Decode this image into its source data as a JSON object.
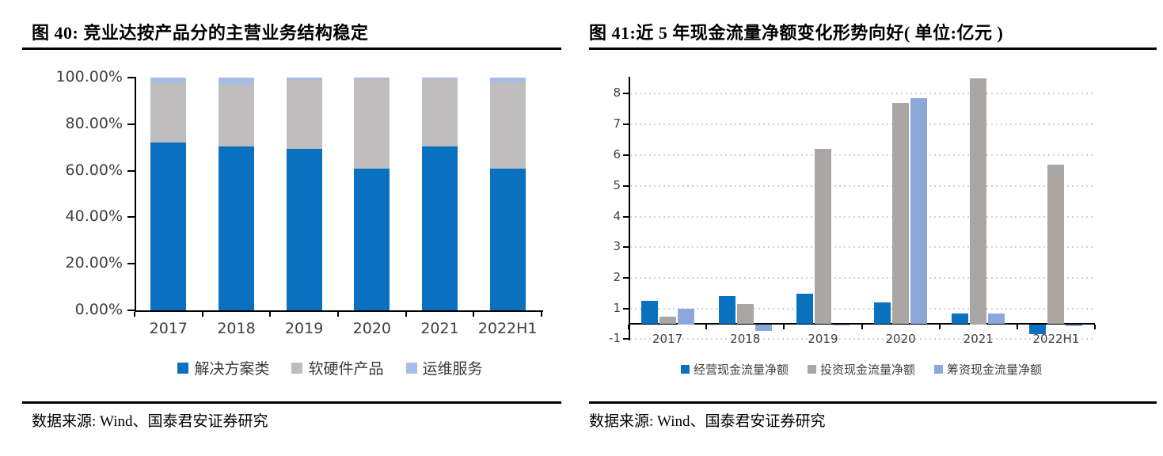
{
  "panels": {
    "left": {
      "title": "图 40: 竞业达按产品分的主营业务结构稳定",
      "source": "数据来源: Wind、国泰君安证券研究"
    },
    "right": {
      "title": "图 41:近 5 年现金流量净额变化形势向好( 单位:亿元 )",
      "source": "数据来源: Wind、国泰君安证券研究"
    }
  },
  "colors": {
    "bar_blue": "#0a70c0",
    "bar_gray_left": "#bfbdbd",
    "bar_gray_right": "#a9a6a4",
    "bar_lightblue_left": "#a9bce4",
    "bar_lightblue_right": "#8ea7db",
    "axis": "#000000",
    "tick_text": "#404040",
    "gridline": "#d2d2d2",
    "title_text": "#000000"
  },
  "chart_data": [
    {
      "type": "bar",
      "variant": "stacked-100-percent",
      "title": "竞业达按产品分的主营业务结构稳定",
      "categories": [
        "2017",
        "2018",
        "2019",
        "2020",
        "2021",
        "2022H1"
      ],
      "series": [
        {
          "name": "解决方案类",
          "color": "#0a70c0",
          "values": [
            72,
            70.5,
            69.5,
            61,
            70.5,
            61
          ]
        },
        {
          "name": "软硬件产品",
          "color": "#bfbdbd",
          "values": [
            25.5,
            26.5,
            29.5,
            38.2,
            28.9,
            37
          ]
        },
        {
          "name": "运维服务",
          "color": "#a9bce4",
          "values": [
            2.5,
            3,
            1,
            0.8,
            0.6,
            2
          ]
        }
      ],
      "yticks": [
        "0.00%",
        "20.00%",
        "40.00%",
        "60.00%",
        "80.00%",
        "100.00%"
      ],
      "ylim": [
        0,
        100
      ],
      "ylabel": "",
      "xlabel": "",
      "grid": false,
      "legend_position": "bottom"
    },
    {
      "type": "bar",
      "variant": "grouped",
      "title": "近 5 年现金流量净额变化形势向好",
      "unit": "亿元",
      "categories": [
        "2017",
        "2018",
        "2019",
        "2020",
        "2021",
        "2022H1"
      ],
      "series": [
        {
          "name": "经营现金流量净额",
          "color": "#0a70c0",
          "values": [
            1.25,
            1.4,
            1.5,
            1.2,
            0.65,
            -0.7
          ]
        },
        {
          "name": "投资现金流量净额",
          "color": "#a9a6a4",
          "values": [
            0.45,
            1.15,
            6.2,
            7.7,
            8.5,
            5.7
          ]
        },
        {
          "name": "筹资现金流量净额",
          "color": "#8ea7db",
          "values": [
            1.0,
            -0.5,
            -0.15,
            7.85,
            0.7,
            -0.2
          ]
        }
      ],
      "yticks": [
        8,
        7,
        6,
        5,
        4,
        3,
        2,
        1,
        -1
      ],
      "ylim": [
        -1,
        8.55
      ],
      "ylabel": "",
      "xlabel": "",
      "grid": "dotted",
      "legend_position": "bottom"
    }
  ]
}
